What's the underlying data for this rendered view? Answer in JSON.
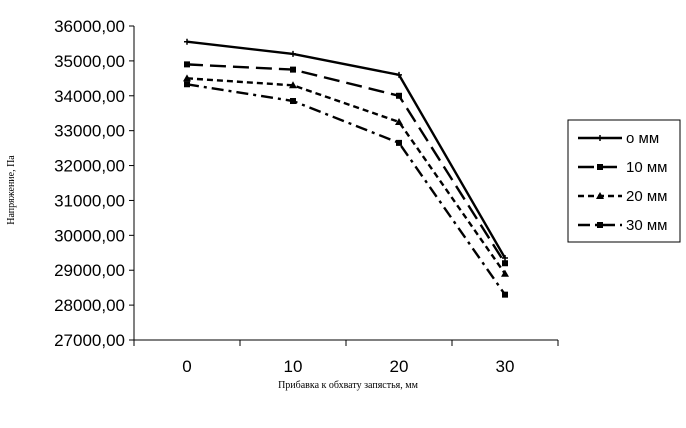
{
  "chart_data": {
    "type": "line",
    "title": "",
    "xlabel": "Прибавка к обхвату запястья, мм",
    "ylabel": "Напряжение, Па",
    "categories": [
      "0",
      "10",
      "20",
      "30"
    ],
    "ylim": [
      27000,
      36000
    ],
    "yticks": [
      "27000,00",
      "28000,00",
      "29000,00",
      "30000,00",
      "31000,00",
      "32000,00",
      "33000,00",
      "34000,00",
      "35000,00",
      "36000,00"
    ],
    "grid": false,
    "legend_position": "right",
    "series": [
      {
        "name": "о мм",
        "values": [
          35550,
          35200,
          34600,
          29350
        ],
        "style": "solid",
        "marker": "plus",
        "color": "#000000"
      },
      {
        "name": "10 мм",
        "values": [
          34900,
          34750,
          34000,
          29200
        ],
        "style": "longdash",
        "marker": "square",
        "color": "#000000"
      },
      {
        "name": "20 мм",
        "values": [
          34500,
          34300,
          33250,
          28900
        ],
        "style": "shortdash",
        "marker": "triangle",
        "color": "#000000"
      },
      {
        "name": "30 мм",
        "values": [
          34330,
          33850,
          32650,
          28300
        ],
        "style": "dashdot",
        "marker": "square",
        "color": "#000000"
      }
    ]
  }
}
